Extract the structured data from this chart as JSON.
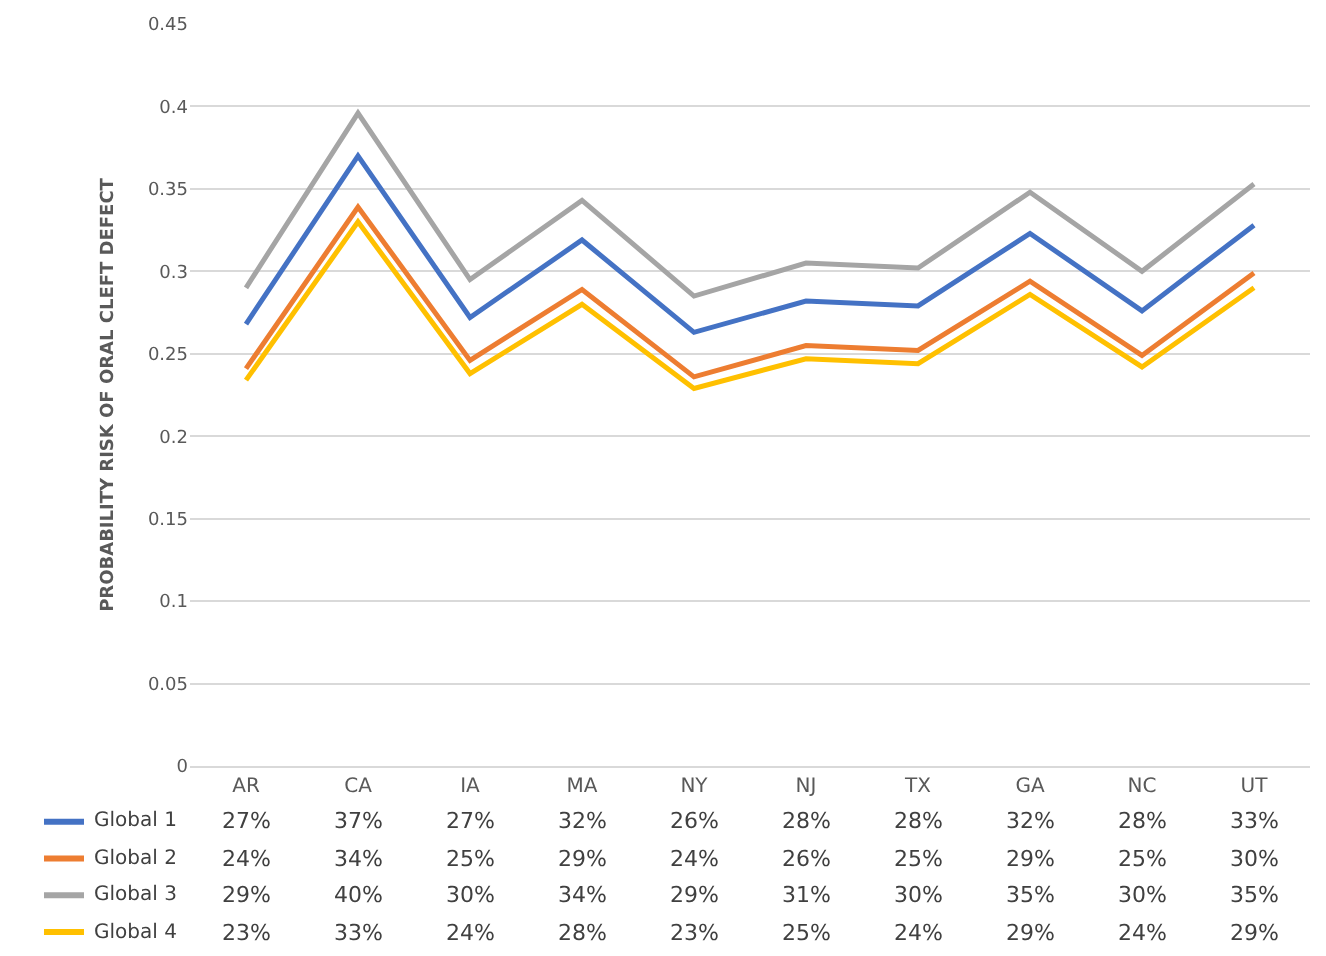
{
  "chart_data": {
    "type": "line",
    "ylabel": "PROBABILITY RISK OF ORAL CLEFT DEFECT",
    "categories": [
      "AR",
      "CA",
      "IA",
      "MA",
      "NY",
      "NJ",
      "TX",
      "GA",
      "NC",
      "UT"
    ],
    "series": [
      {
        "name": "Global 1",
        "color": "#4472c4",
        "values": [
          0.268,
          0.37,
          0.272,
          0.319,
          0.263,
          0.282,
          0.279,
          0.323,
          0.276,
          0.328
        ],
        "value_labels": [
          "27%",
          "37%",
          "27%",
          "32%",
          "26%",
          "28%",
          "28%",
          "32%",
          "28%",
          "33%"
        ]
      },
      {
        "name": "Global 2",
        "color": "#ed7d31",
        "values": [
          0.241,
          0.339,
          0.246,
          0.289,
          0.236,
          0.255,
          0.252,
          0.294,
          0.249,
          0.299
        ],
        "value_labels": [
          "24%",
          "34%",
          "25%",
          "29%",
          "24%",
          "26%",
          "25%",
          "29%",
          "25%",
          "30%"
        ]
      },
      {
        "name": "Global 3",
        "color": "#a5a5a5",
        "values": [
          0.29,
          0.396,
          0.295,
          0.343,
          0.285,
          0.305,
          0.302,
          0.348,
          0.3,
          0.353
        ],
        "value_labels": [
          "29%",
          "40%",
          "30%",
          "34%",
          "29%",
          "31%",
          "30%",
          "35%",
          "30%",
          "35%"
        ]
      },
      {
        "name": "Global 4",
        "color": "#ffc000",
        "values": [
          0.234,
          0.33,
          0.238,
          0.28,
          0.229,
          0.247,
          0.244,
          0.286,
          0.242,
          0.29
        ],
        "value_labels": [
          "23%",
          "33%",
          "24%",
          "28%",
          "23%",
          "25%",
          "24%",
          "29%",
          "24%",
          "29%"
        ]
      }
    ],
    "ylim": [
      0,
      0.45
    ],
    "yticks": [
      0,
      0.05,
      0.1,
      0.15,
      0.2,
      0.25,
      0.3,
      0.35,
      0.4,
      0.45
    ],
    "grid": "y",
    "legend": "bottom",
    "marker": "none",
    "line_style": "solid"
  }
}
